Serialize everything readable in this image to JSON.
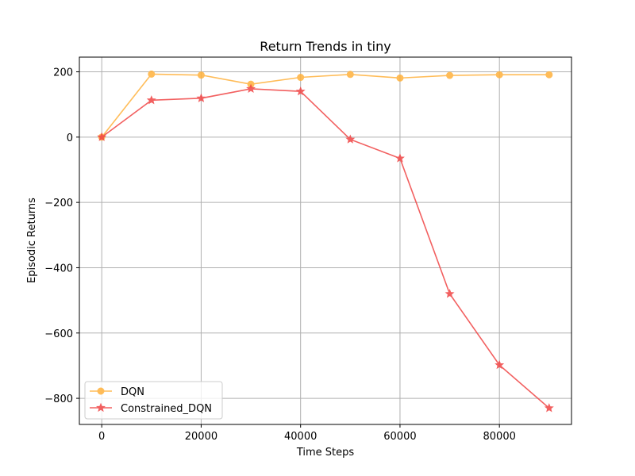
{
  "chart_data": {
    "type": "line",
    "title": "Return Trends in tiny",
    "xlabel": "Time Steps",
    "ylabel": "Episodic Returns",
    "xlim": [
      -4500,
      94500
    ],
    "ylim": [
      -880,
      245
    ],
    "xticks": [
      0,
      20000,
      40000,
      60000,
      80000
    ],
    "xtick_labels": [
      "0",
      "20000",
      "40000",
      "60000",
      "80000"
    ],
    "yticks": [
      200,
      0,
      -200,
      -400,
      -600,
      -800
    ],
    "ytick_labels": [
      "200",
      "0",
      "−200",
      "−400",
      "−600",
      "−800"
    ],
    "grid": true,
    "legend_position": "lower-left",
    "x": [
      0,
      10000,
      20000,
      30000,
      40000,
      50000,
      60000,
      70000,
      80000,
      90000
    ],
    "series": [
      {
        "name": "DQN",
        "color": "#ffb13b",
        "marker": "circle",
        "values": [
          0,
          193,
          190,
          162,
          183,
          192,
          181,
          189,
          191,
          191
        ]
      },
      {
        "name": "Constrained_DQN",
        "color": "#f04545",
        "marker": "star",
        "values": [
          0,
          113,
          119,
          148,
          140,
          -7,
          -65,
          -480,
          -698,
          -830
        ]
      }
    ]
  }
}
